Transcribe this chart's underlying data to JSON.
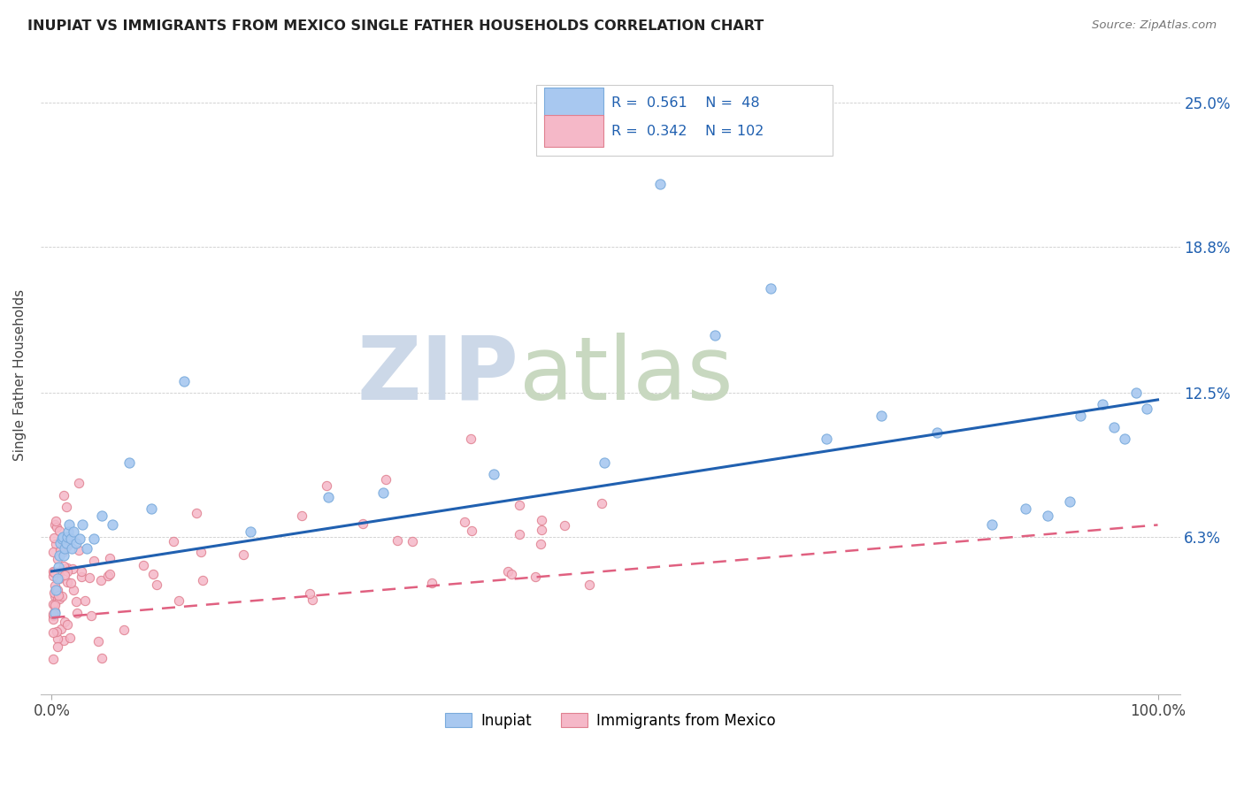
{
  "title": "INUPIAT VS IMMIGRANTS FROM MEXICO SINGLE FATHER HOUSEHOLDS CORRELATION CHART",
  "source": "Source: ZipAtlas.com",
  "ylabel": "Single Father Households",
  "ytick_labels": [
    "6.3%",
    "12.5%",
    "18.8%",
    "25.0%"
  ],
  "ytick_values": [
    0.063,
    0.125,
    0.188,
    0.25
  ],
  "ylim": [
    -0.005,
    0.27
  ],
  "xlim": [
    -0.01,
    1.02
  ],
  "inupiat_R": 0.561,
  "inupiat_N": 48,
  "mexico_R": 0.342,
  "mexico_N": 102,
  "inupiat_color": "#a8c8f0",
  "inupiat_edge_color": "#7aabdc",
  "mexico_color": "#f5b8c8",
  "mexico_edge_color": "#e08090",
  "inupiat_line_color": "#2060b0",
  "mexico_line_color": "#e06080",
  "background_color": "#ffffff",
  "watermark_zip_color": "#ccd8e8",
  "watermark_atlas_color": "#c8d8c0",
  "grid_color": "#cccccc"
}
